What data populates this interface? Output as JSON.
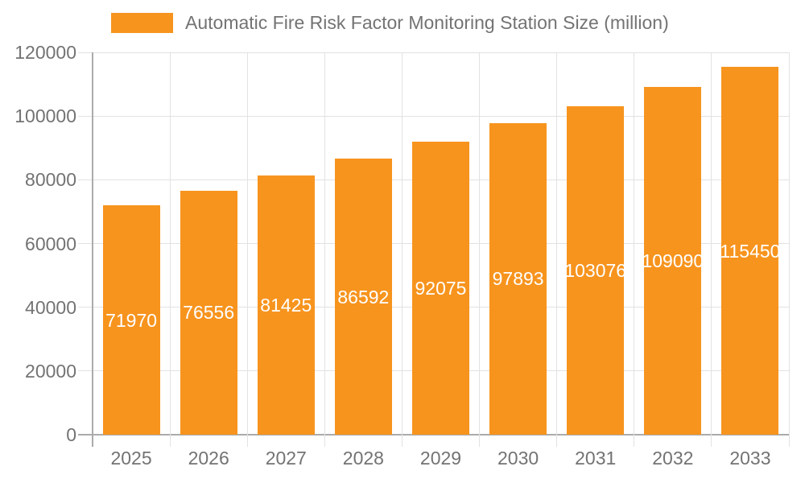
{
  "chart_data": {
    "type": "bar",
    "legend": "Automatic Fire Risk Factor Monitoring Station Size (million)",
    "categories": [
      "2025",
      "2026",
      "2027",
      "2028",
      "2029",
      "2030",
      "2031",
      "2032",
      "2033"
    ],
    "values": [
      71970,
      76556,
      81425,
      86592,
      92075,
      97893,
      103076,
      109090,
      115450
    ],
    "yticks": [
      0,
      20000,
      40000,
      60000,
      80000,
      100000,
      120000
    ],
    "ylim": [
      0,
      120000
    ],
    "xlabel": "",
    "ylabel": "",
    "grid": true,
    "legend_position": "top",
    "colors": {
      "bar": "#f7941e",
      "bar_label": "#ffffff",
      "axis_text": "#737373",
      "grid_line": "#e2e2e2",
      "axis_line": "#ababab",
      "background": "#ffffff"
    }
  }
}
